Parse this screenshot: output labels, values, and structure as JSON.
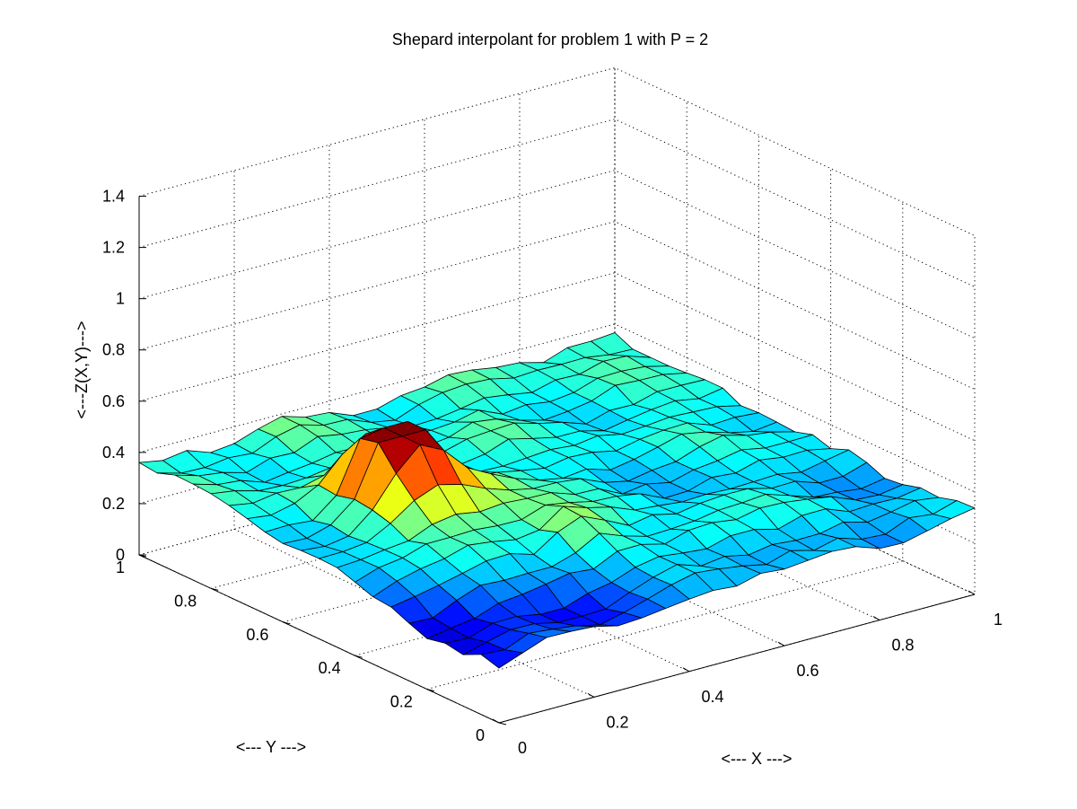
{
  "chart_data": {
    "type": "surface",
    "title": "Shepard interpolant for problem 1 with P = 2",
    "xlabel": "<--- X --->",
    "ylabel": "<--- Y --->",
    "zlabel": "<---Z(X,Y)--->",
    "xlim": [
      0,
      1
    ],
    "ylim": [
      0,
      1
    ],
    "zlim": [
      0,
      1.4
    ],
    "xticks": [
      "0",
      "0.2",
      "0.4",
      "0.6",
      "0.8",
      "1"
    ],
    "yticks": [
      "0",
      "0.2",
      "0.4",
      "0.6",
      "0.8",
      "1"
    ],
    "zticks": [
      "0",
      "0.2",
      "0.4",
      "0.6",
      "0.8",
      "1",
      "1.2",
      "1.4"
    ],
    "grid": true,
    "colormap": "jet",
    "grid_points": 21,
    "z_description": "Surface values mostly 0.2–0.45 with a central peak near 0.6 around X≈0.25, Y≈0.6",
    "z_min": 0.17,
    "z_max": 0.6
  }
}
